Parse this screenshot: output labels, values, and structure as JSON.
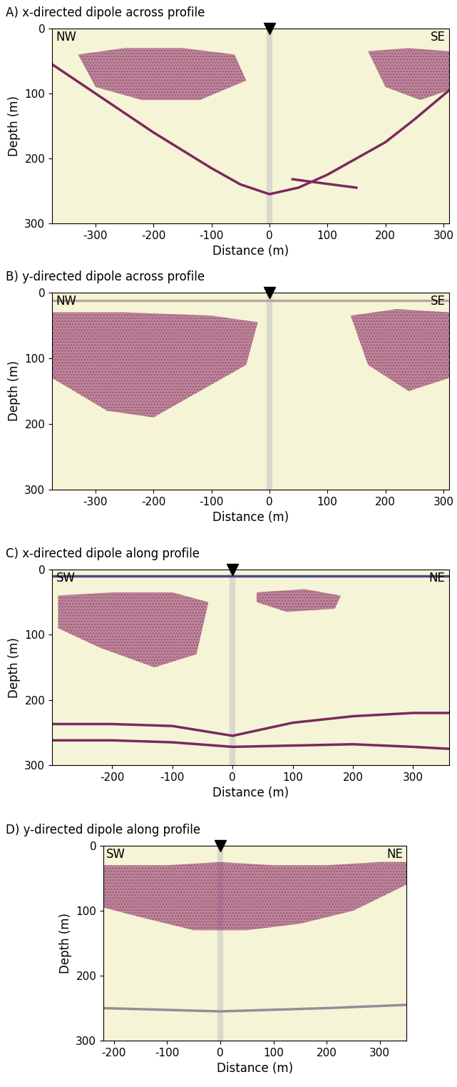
{
  "chart_data": [
    {
      "type": "radargram",
      "title": "A) x-directed dipole across profile",
      "xlabel": "Distance (m)",
      "ylabel": "Depth (m)",
      "direction_left": "NW",
      "direction_right": "SE",
      "borehole_x": 0,
      "xlim": [
        -375,
        310
      ],
      "ylim": [
        300,
        0
      ],
      "xticks": [
        -300,
        -200,
        -100,
        0,
        100,
        200,
        300
      ],
      "yticks": [
        0,
        100,
        200,
        300
      ],
      "background": "#f6f4d6",
      "series": [
        {
          "type": "area",
          "color": "#8b2c66",
          "x": [
            -330,
            -250,
            -150,
            -60,
            -40,
            -120,
            -220,
            -300,
            -330
          ],
          "values": [
            40,
            30,
            30,
            40,
            80,
            110,
            110,
            90,
            40
          ]
        },
        {
          "type": "area",
          "color": "#8b2c66",
          "x": [
            170,
            240,
            310,
            310,
            260,
            200,
            170
          ],
          "values": [
            35,
            30,
            35,
            95,
            110,
            90,
            35
          ]
        },
        {
          "type": "line",
          "color": "#7a2a5e",
          "x": [
            -375,
            -300,
            -200,
            -100,
            -50,
            0,
            50,
            100,
            200,
            250,
            310
          ],
          "values": [
            55,
            100,
            160,
            215,
            240,
            255,
            245,
            225,
            175,
            140,
            95
          ]
        },
        {
          "type": "line",
          "color": "#7a2a5e",
          "x": [
            40,
            90,
            150
          ],
          "values": [
            232,
            238,
            245
          ]
        }
      ]
    },
    {
      "type": "radargram",
      "title": "B) y-directed dipole across profile",
      "xlabel": "Distance (m)",
      "ylabel": "Depth (m)",
      "direction_left": "NW",
      "direction_right": "SE",
      "borehole_x": 0,
      "xlim": [
        -375,
        310
      ],
      "ylim": [
        300,
        0
      ],
      "xticks": [
        -300,
        -200,
        -100,
        0,
        100,
        200,
        300
      ],
      "yticks": [
        0,
        100,
        200,
        300
      ],
      "background": "#f6f4d6",
      "series": [
        {
          "type": "area",
          "color": "#8b2c66",
          "x": [
            -375,
            -250,
            -100,
            -20,
            -40,
            -120,
            -200,
            -280,
            -375
          ],
          "values": [
            30,
            30,
            35,
            45,
            110,
            150,
            190,
            180,
            130
          ]
        },
        {
          "type": "area",
          "color": "#8b2c66",
          "x": [
            140,
            220,
            310,
            310,
            240,
            170,
            140
          ],
          "values": [
            35,
            25,
            30,
            130,
            150,
            110,
            35
          ]
        },
        {
          "type": "line",
          "color": "#b9a7a0",
          "x": [
            -375,
            310
          ],
          "values": [
            12,
            12
          ]
        }
      ]
    },
    {
      "type": "radargram",
      "title": "C) x-directed dipole along profile",
      "xlabel": "Distance (m)",
      "ylabel": "Depth (m)",
      "direction_left": "SW",
      "direction_right": "NE",
      "borehole_x": 0,
      "xlim": [
        -300,
        360
      ],
      "ylim": [
        300,
        0
      ],
      "xticks": [
        -200,
        -100,
        0,
        100,
        200,
        300
      ],
      "yticks": [
        0,
        100,
        200,
        300
      ],
      "background": "#f6f4d6",
      "series": [
        {
          "type": "area",
          "color": "#8b2c66",
          "x": [
            -290,
            -200,
            -100,
            -40,
            -60,
            -130,
            -220,
            -290
          ],
          "values": [
            40,
            35,
            35,
            50,
            130,
            150,
            120,
            90
          ]
        },
        {
          "type": "area",
          "color": "#8b2c66",
          "x": [
            40,
            120,
            180,
            170,
            90,
            40
          ],
          "values": [
            35,
            30,
            40,
            60,
            65,
            50
          ]
        },
        {
          "type": "line",
          "color": "#4a4a8a",
          "x": [
            -300,
            360
          ],
          "values": [
            10,
            10
          ]
        },
        {
          "type": "line",
          "color": "#7a2a5e",
          "x": [
            -300,
            -200,
            -100,
            0,
            100,
            200,
            300,
            360
          ],
          "values": [
            237,
            237,
            240,
            255,
            235,
            225,
            220,
            220
          ]
        },
        {
          "type": "line",
          "color": "#7a2a5e",
          "x": [
            -300,
            -200,
            -100,
            0,
            100,
            200,
            300,
            360
          ],
          "values": [
            262,
            262,
            265,
            272,
            270,
            268,
            272,
            275
          ]
        }
      ]
    },
    {
      "type": "radargram",
      "title": "D) y-directed dipole along profile",
      "xlabel": "Distance (m)",
      "ylabel": "Depth (m)",
      "direction_left": "SW",
      "direction_right": "NE",
      "borehole_x": 0,
      "xlim": [
        -220,
        350
      ],
      "ylim": [
        300,
        0
      ],
      "xticks": [
        -200,
        -100,
        0,
        100,
        200,
        300
      ],
      "yticks": [
        0,
        100,
        200,
        300
      ],
      "background": "#f6f4d6",
      "series": [
        {
          "type": "area",
          "color": "#8b2c66",
          "x": [
            -220,
            -100,
            0,
            100,
            200,
            300,
            350,
            350,
            250,
            150,
            50,
            -50,
            -150,
            -220
          ],
          "values": [
            30,
            30,
            25,
            30,
            30,
            25,
            25,
            60,
            100,
            120,
            130,
            130,
            110,
            95
          ]
        },
        {
          "type": "line",
          "color": "#9a8a9a",
          "x": [
            -220,
            0,
            200,
            350
          ],
          "values": [
            250,
            255,
            250,
            245
          ]
        }
      ]
    }
  ]
}
